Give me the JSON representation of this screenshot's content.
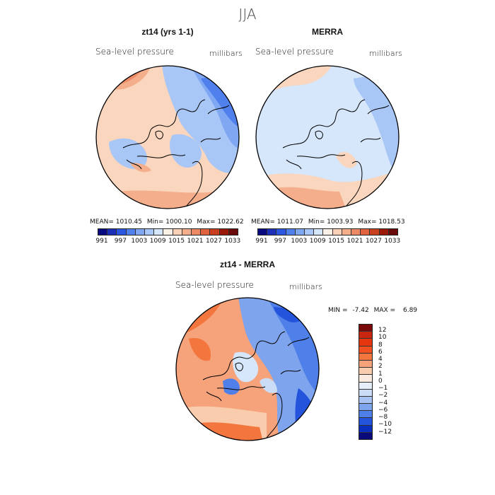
{
  "season": "JJA",
  "panels": {
    "model": {
      "title": "zt14 (yrs 1-1)",
      "variable": "Sea-level pressure",
      "units": "millibars",
      "stats": {
        "mean_label": "MEAN=",
        "mean": "1010.45",
        "min_label": "Min=",
        "min": "1000.10",
        "max_label": "Max=",
        "max": "1022.62"
      }
    },
    "obs": {
      "title": "MERRA",
      "variable": "Sea-level pressure",
      "units": "millibars",
      "stats": {
        "mean_label": "MEAN=",
        "mean": "1011.07",
        "min_label": "Min=",
        "min": "1003.93",
        "max_label": "Max=",
        "max": "1018.53"
      }
    },
    "diff": {
      "title": "zt14 - MERRA",
      "variable": "Sea-level pressure",
      "units": "millibars",
      "stats": {
        "min_label": "MIN =",
        "min": "-7.42",
        "max_label": "MAX =",
        "max": "6.89"
      }
    }
  },
  "colorbar_abs": {
    "tick_labels": [
      "991",
      "997",
      "1003",
      "1009",
      "1015",
      "1021",
      "1027",
      "1033"
    ],
    "colors": [
      "#0a0a80",
      "#1b2fb8",
      "#2b57e0",
      "#4f80ec",
      "#7fa7f2",
      "#a9c7f6",
      "#d6e6fb",
      "#faf0e6",
      "#f9d2b8",
      "#f4ae8c",
      "#ec8a66",
      "#e0623f",
      "#c8401f",
      "#9c1a0a",
      "#6b0a0a"
    ]
  },
  "colorbar_diff": {
    "tick_labels": [
      "12",
      "10",
      "8",
      "6",
      "4",
      "2",
      "1",
      "0",
      "−1",
      "−2",
      "−4",
      "−6",
      "−8",
      "−10",
      "−12"
    ],
    "colors": [
      "#7a0a0a",
      "#c8260f",
      "#e5360f",
      "#f25020",
      "#f4763f",
      "#f6a27a",
      "#f9ccad",
      "#fbeadf",
      "#e6eefa",
      "#cbdcf6",
      "#a8c3f2",
      "#7ea4ee",
      "#4f7fe8",
      "#2453dc",
      "#0a2fbf",
      "#0a0a7a"
    ]
  }
}
